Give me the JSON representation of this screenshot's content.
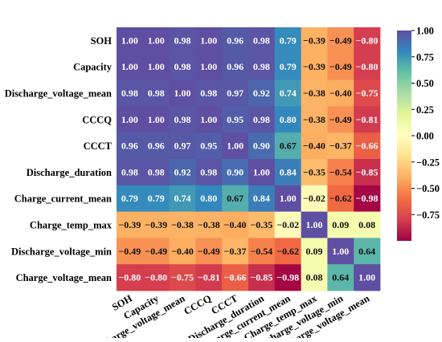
{
  "chart_data": {
    "type": "heatmap",
    "title": "",
    "xlabel": "",
    "ylabel": "",
    "variables": [
      "SOH",
      "Capacity",
      "Discharge_voltage_mean",
      "CCCQ",
      "CCCT",
      "Discharge_duration",
      "Charge_current_mean",
      "Charge_temp_max",
      "Discharge_voltage_min",
      "Charge_voltage_mean"
    ],
    "matrix": [
      [
        1.0,
        1.0,
        0.98,
        1.0,
        0.96,
        0.98,
        0.79,
        -0.39,
        -0.49,
        -0.8
      ],
      [
        1.0,
        1.0,
        0.98,
        1.0,
        0.96,
        0.98,
        0.79,
        -0.39,
        -0.49,
        -0.8
      ],
      [
        0.98,
        0.98,
        1.0,
        0.98,
        0.97,
        0.92,
        0.74,
        -0.38,
        -0.4,
        -0.75
      ],
      [
        1.0,
        1.0,
        0.98,
        1.0,
        0.95,
        0.98,
        0.8,
        -0.38,
        -0.49,
        -0.81
      ],
      [
        0.96,
        0.96,
        0.97,
        0.95,
        1.0,
        0.9,
        0.67,
        -0.4,
        -0.37,
        -0.66
      ],
      [
        0.98,
        0.98,
        0.92,
        0.98,
        0.9,
        1.0,
        0.84,
        -0.35,
        -0.54,
        -0.85
      ],
      [
        0.79,
        0.79,
        0.74,
        0.8,
        0.67,
        0.84,
        1.0,
        -0.02,
        -0.62,
        -0.98
      ],
      [
        -0.39,
        -0.39,
        -0.38,
        -0.38,
        -0.4,
        -0.35,
        -0.02,
        1.0,
        0.09,
        0.08
      ],
      [
        -0.49,
        -0.49,
        -0.4,
        -0.49,
        -0.37,
        -0.54,
        -0.62,
        0.09,
        1.0,
        0.64
      ],
      [
        -0.8,
        -0.8,
        -0.75,
        -0.81,
        -0.66,
        -0.85,
        -0.98,
        0.08,
        0.64,
        1.0
      ]
    ],
    "value_format": "2 decimals",
    "colormap": "spectral",
    "vmin": -1.0,
    "vmax": 1.0,
    "colorbar_ticks": [
      "1.00",
      "0.75",
      "0.50",
      "0.25",
      "0.00",
      "−0.25",
      "−0.50",
      "−0.75"
    ],
    "colorbar_tick_values": [
      1.0,
      0.75,
      0.5,
      0.25,
      0.0,
      -0.25,
      -0.5,
      -0.75
    ],
    "colors": {
      "high": "#5e4fa2",
      "mid": "#ffffbf",
      "low": "#9e0142"
    }
  }
}
